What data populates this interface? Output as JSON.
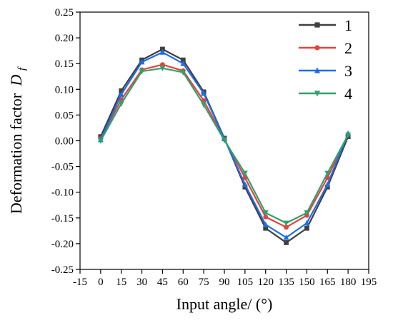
{
  "chart_data": {
    "type": "line",
    "xlabel": "Input angle/ (°)",
    "ylabel": "Deformation factor",
    "ylabel_symbol": "D",
    "ylabel_subscript": "f",
    "xlim": [
      -15,
      195
    ],
    "ylim": [
      -0.25,
      0.25
    ],
    "xticks": [
      -15,
      0,
      15,
      30,
      45,
      60,
      75,
      90,
      105,
      120,
      135,
      150,
      165,
      180,
      195
    ],
    "yticks": [
      "0.25",
      "0.20",
      "0.15",
      "0.10",
      "0.05",
      "0.00",
      "-0.05",
      "-0.10",
      "-0.15",
      "-0.20",
      "-0.25"
    ],
    "x": [
      0,
      15,
      30,
      45,
      60,
      75,
      90,
      105,
      120,
      135,
      150,
      165,
      180
    ],
    "legend_position": "top-right",
    "grid": false,
    "series": [
      {
        "name": "1",
        "color": "#404040",
        "marker": "square",
        "values": [
          0.008,
          0.097,
          0.157,
          0.178,
          0.157,
          0.095,
          0.005,
          -0.09,
          -0.17,
          -0.198,
          -0.17,
          -0.09,
          0.008
        ]
      },
      {
        "name": "2",
        "color": "#e8413b",
        "marker": "circle",
        "values": [
          0.004,
          0.08,
          0.138,
          0.148,
          0.136,
          0.078,
          0.003,
          -0.072,
          -0.148,
          -0.168,
          -0.145,
          -0.072,
          0.012
        ]
      },
      {
        "name": "3",
        "color": "#1c6ee8",
        "marker": "triangle-up",
        "values": [
          0.002,
          0.09,
          0.153,
          0.172,
          0.15,
          0.092,
          0.004,
          -0.085,
          -0.163,
          -0.188,
          -0.16,
          -0.085,
          0.014
        ]
      },
      {
        "name": "4",
        "color": "#2ea36a",
        "marker": "triangle-down",
        "values": [
          0.0,
          0.072,
          0.135,
          0.141,
          0.133,
          0.07,
          0.001,
          -0.063,
          -0.14,
          -0.16,
          -0.14,
          -0.063,
          0.011
        ]
      }
    ]
  }
}
